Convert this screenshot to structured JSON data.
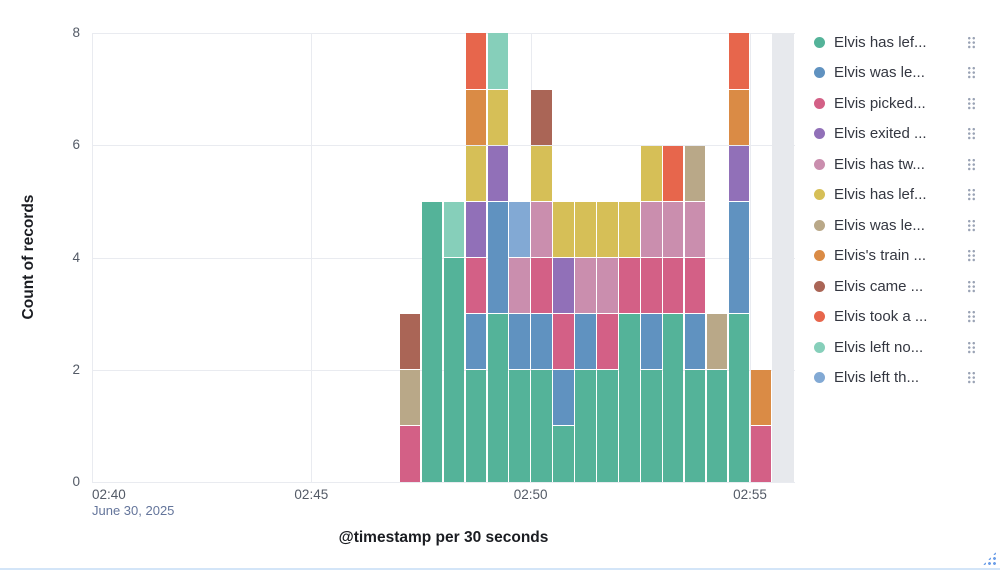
{
  "panel": {
    "background": "#ffffff"
  },
  "chart": {
    "y_axis_title": "Count of records",
    "x_axis_title": "@timestamp per 30 seconds",
    "y_tick_labels": [
      "0",
      "2",
      "4",
      "6",
      "8"
    ],
    "x_tick_labels": [
      "02:40",
      "02:45",
      "02:50",
      "02:55"
    ],
    "x_first_tick_date": "June 30, 2025"
  },
  "chart_data": {
    "type": "bar",
    "stacked": true,
    "title": "",
    "xlabel": "@timestamp per 30 seconds",
    "ylabel": "Count of records",
    "ylim": [
      0,
      8
    ],
    "y_ticks": [
      0,
      2,
      4,
      6,
      8
    ],
    "x_axis_start": "02:40:00",
    "x_axis_end": "02:56:00",
    "bucket_seconds": 30,
    "grid": true,
    "legend_position": "right",
    "partial_bucket_band": {
      "from": "02:55:30",
      "to": "02:56:00",
      "color": "#e7e9ed"
    },
    "series": [
      {
        "label": "Elvis has lef...",
        "color": "#54B399"
      },
      {
        "label": "Elvis was le...",
        "color": "#6092C0"
      },
      {
        "label": "Elvis picked...",
        "color": "#D36086"
      },
      {
        "label": "Elvis exited ...",
        "color": "#9170B8"
      },
      {
        "label": "Elvis has tw...",
        "color": "#CA8EAE"
      },
      {
        "label": "Elvis has lef...",
        "color": "#D6BF57"
      },
      {
        "label": "Elvis was le...",
        "color": "#B9A888"
      },
      {
        "label": "Elvis's train ...",
        "color": "#DA8B45"
      },
      {
        "label": "Elvis came ...",
        "color": "#AA6556"
      },
      {
        "label": "Elvis took a ...",
        "color": "#E7664C"
      },
      {
        "label": "Elvis left no...",
        "color": "#86CFBA"
      },
      {
        "label": "Elvis left th...",
        "color": "#82A9D4"
      }
    ],
    "bars": [
      {
        "time": "02:47:00",
        "segments": [
          [
            2,
            1
          ],
          [
            6,
            1
          ],
          [
            8,
            1
          ]
        ]
      },
      {
        "time": "02:47:30",
        "segments": [
          [
            0,
            5
          ]
        ]
      },
      {
        "time": "02:48:00",
        "segments": [
          [
            0,
            4
          ],
          [
            10,
            1
          ]
        ]
      },
      {
        "time": "02:48:30",
        "segments": [
          [
            0,
            2
          ],
          [
            1,
            1
          ],
          [
            2,
            1
          ],
          [
            3,
            1
          ],
          [
            5,
            1
          ],
          [
            7,
            1
          ],
          [
            9,
            1
          ]
        ]
      },
      {
        "time": "02:49:00",
        "segments": [
          [
            0,
            3
          ],
          [
            1,
            2
          ],
          [
            3,
            1
          ],
          [
            5,
            1
          ],
          [
            10,
            1
          ]
        ]
      },
      {
        "time": "02:49:30",
        "segments": [
          [
            0,
            2
          ],
          [
            1,
            1
          ],
          [
            4,
            1
          ],
          [
            11,
            1
          ]
        ]
      },
      {
        "time": "02:50:00",
        "segments": [
          [
            0,
            2
          ],
          [
            1,
            1
          ],
          [
            2,
            1
          ],
          [
            4,
            1
          ],
          [
            5,
            1
          ],
          [
            8,
            1
          ]
        ]
      },
      {
        "time": "02:50:30",
        "segments": [
          [
            0,
            1
          ],
          [
            1,
            1
          ],
          [
            2,
            1
          ],
          [
            3,
            1
          ],
          [
            5,
            1
          ]
        ]
      },
      {
        "time": "02:51:00",
        "segments": [
          [
            0,
            2
          ],
          [
            1,
            1
          ],
          [
            4,
            1
          ],
          [
            5,
            1
          ]
        ]
      },
      {
        "time": "02:51:30",
        "segments": [
          [
            0,
            2
          ],
          [
            2,
            1
          ],
          [
            4,
            1
          ],
          [
            5,
            1
          ]
        ]
      },
      {
        "time": "02:52:00",
        "segments": [
          [
            0,
            3
          ],
          [
            2,
            1
          ],
          [
            5,
            1
          ]
        ]
      },
      {
        "time": "02:52:30",
        "segments": [
          [
            0,
            2
          ],
          [
            1,
            1
          ],
          [
            2,
            1
          ],
          [
            4,
            1
          ],
          [
            5,
            1
          ]
        ]
      },
      {
        "time": "02:53:00",
        "segments": [
          [
            0,
            3
          ],
          [
            2,
            1
          ],
          [
            4,
            1
          ],
          [
            9,
            1
          ]
        ]
      },
      {
        "time": "02:53:30",
        "segments": [
          [
            0,
            2
          ],
          [
            1,
            1
          ],
          [
            2,
            1
          ],
          [
            4,
            1
          ],
          [
            6,
            1
          ]
        ]
      },
      {
        "time": "02:54:00",
        "segments": [
          [
            0,
            2
          ],
          [
            6,
            1
          ]
        ]
      },
      {
        "time": "02:54:30",
        "segments": [
          [
            0,
            3
          ],
          [
            1,
            2
          ],
          [
            3,
            1
          ],
          [
            7,
            1
          ],
          [
            9,
            1
          ]
        ]
      },
      {
        "time": "02:55:00",
        "segments": [
          [
            2,
            1
          ],
          [
            7,
            1
          ]
        ]
      }
    ]
  },
  "legend": {
    "actions_icon": "dots-grid"
  },
  "icons": {
    "resize_handle": "drag-dots-triangle"
  }
}
